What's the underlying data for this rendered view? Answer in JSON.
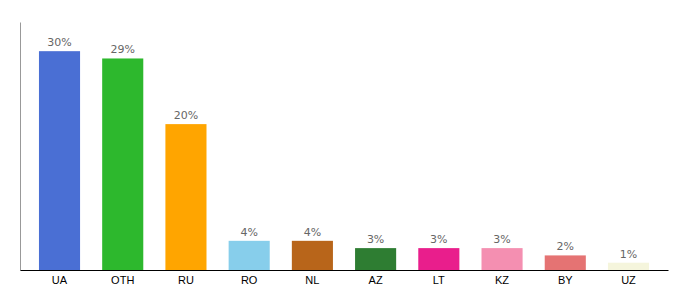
{
  "chart_data": {
    "type": "bar",
    "categories": [
      "UA",
      "OTH",
      "RU",
      "RO",
      "NL",
      "AZ",
      "LT",
      "KZ",
      "BY",
      "UZ"
    ],
    "values": [
      30,
      29,
      20,
      4,
      4,
      3,
      3,
      3,
      2,
      1
    ],
    "value_labels": [
      "30%",
      "29%",
      "20%",
      "4%",
      "4%",
      "3%",
      "3%",
      "3%",
      "2%",
      "1%"
    ],
    "colors": [
      "#4A6FD4",
      "#2DB82D",
      "#FFA500",
      "#87CEEB",
      "#B8651A",
      "#2E7D32",
      "#E91E8C",
      "#F48FB1",
      "#E57373",
      "#F5F5DC"
    ],
    "ylim": [
      0,
      34
    ],
    "data_labels": true,
    "tick_labels": "x"
  }
}
